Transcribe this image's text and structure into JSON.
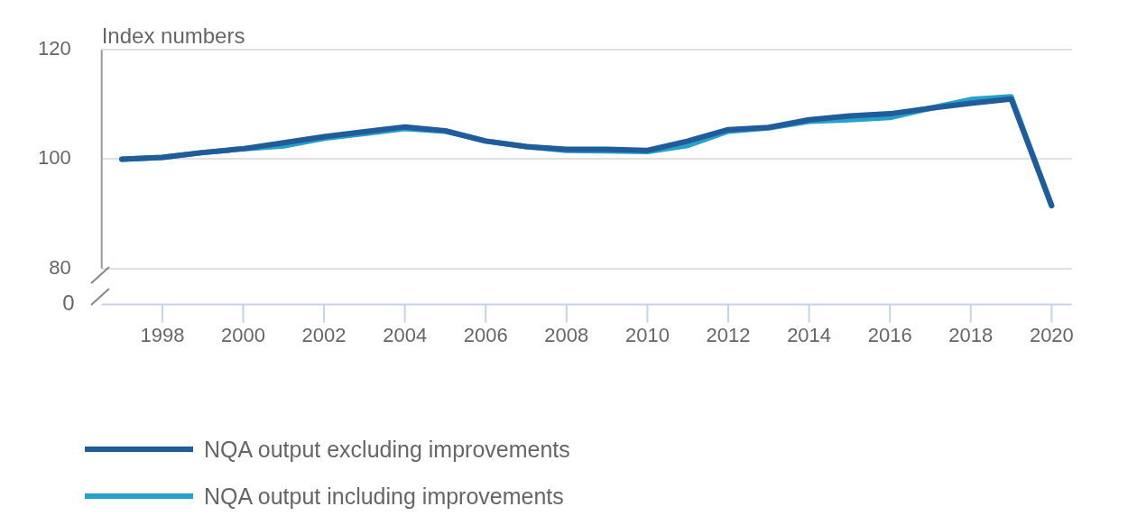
{
  "chart_data": {
    "type": "line",
    "ylabel": "Index numbers",
    "categories": [
      null,
      "1998",
      null,
      "2000",
      null,
      "2002",
      null,
      "2004",
      null,
      "2006",
      null,
      "2008",
      null,
      "2010",
      null,
      "2012",
      null,
      "2014",
      null,
      "2016",
      null,
      "2018",
      null,
      "2020"
    ],
    "series": [
      {
        "name": "NQA output excluding improvements",
        "color": "#1f5c99",
        "values": [
          100.0,
          100.3,
          101.2,
          101.9,
          103.0,
          104.1,
          105.0,
          105.9,
          105.2,
          103.3,
          102.3,
          101.8,
          101.8,
          101.6,
          103.3,
          105.4,
          105.8,
          107.2,
          107.9,
          108.3,
          109.3,
          110.2,
          111.0,
          91.5
        ]
      },
      {
        "name": "NQA output including improvements",
        "color": "#27a0cc",
        "values": [
          100.0,
          100.3,
          101.2,
          101.9,
          102.4,
          103.8,
          104.7,
          105.6,
          105.1,
          103.3,
          102.3,
          101.6,
          101.5,
          101.4,
          102.5,
          105.1,
          105.7,
          106.9,
          107.2,
          107.6,
          109.3,
          110.9,
          111.4,
          91.5
        ]
      }
    ],
    "ylim": [
      80,
      120
    ],
    "yticks": [
      80,
      100,
      120
    ],
    "grid": "y",
    "legend": "bottom",
    "marker": "none",
    "line_style": "solid",
    "annotations": [
      "0"
    ]
  }
}
